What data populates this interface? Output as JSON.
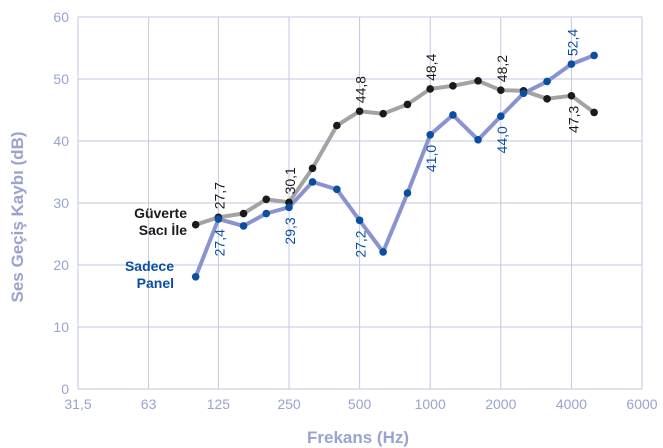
{
  "chart_data": {
    "type": "line",
    "xlabel": "Frekans (Hz)",
    "ylabel": "Ses Geçiş Kaybı (dB)",
    "ylim": [
      0,
      60
    ],
    "yticks": [
      0,
      10,
      20,
      30,
      40,
      50,
      60
    ],
    "x_tick_labels": [
      "31,5",
      "63",
      "125",
      "250",
      "500",
      "1000",
      "2000",
      "4000",
      "6000"
    ],
    "x_scale": "log (octave bands)",
    "grid": true,
    "x": [
      100,
      125,
      160,
      200,
      250,
      315,
      400,
      500,
      630,
      800,
      1000,
      1250,
      1600,
      2000,
      2500,
      3150,
      4000,
      5000
    ],
    "series": [
      {
        "name": "Güverte Sacı İle",
        "name_lines": [
          "Güverte",
          "Sacı İle"
        ],
        "line_color": "#a3a3a3",
        "marker_color": "#1a1a1a",
        "label_color": "#1a1a1a",
        "values": [
          26.5,
          27.7,
          28.3,
          30.6,
          30.1,
          35.6,
          42.5,
          44.8,
          44.4,
          45.9,
          48.4,
          48.9,
          49.7,
          48.2,
          48.1,
          46.8,
          47.3,
          44.6
        ],
        "data_labels": [
          {
            "i": 1,
            "text": "27,7"
          },
          {
            "i": 4,
            "text": "30,1"
          },
          {
            "i": 7,
            "text": "44,8"
          },
          {
            "i": 10,
            "text": "48,4"
          },
          {
            "i": 13,
            "text": "48,2"
          },
          {
            "i": 16,
            "text": "47,3"
          }
        ]
      },
      {
        "name": "Sadece Panel",
        "name_lines": [
          "Sadece",
          "Panel"
        ],
        "line_color": "#8a93cf",
        "marker_color": "#0a4ea2",
        "label_color": "#0a4ea2",
        "values": [
          18.1,
          27.4,
          26.3,
          28.3,
          29.3,
          33.4,
          32.2,
          27.2,
          22.1,
          31.6,
          41.0,
          44.2,
          40.2,
          44.0,
          47.7,
          49.6,
          52.4,
          53.8
        ],
        "data_labels": [
          {
            "i": 1,
            "text": "27,4"
          },
          {
            "i": 4,
            "text": "29,3"
          },
          {
            "i": 7,
            "text": "27,2"
          },
          {
            "i": 10,
            "text": "41,0"
          },
          {
            "i": 13,
            "text": "44,0"
          },
          {
            "i": 16,
            "text": "52,4"
          }
        ]
      }
    ]
  }
}
